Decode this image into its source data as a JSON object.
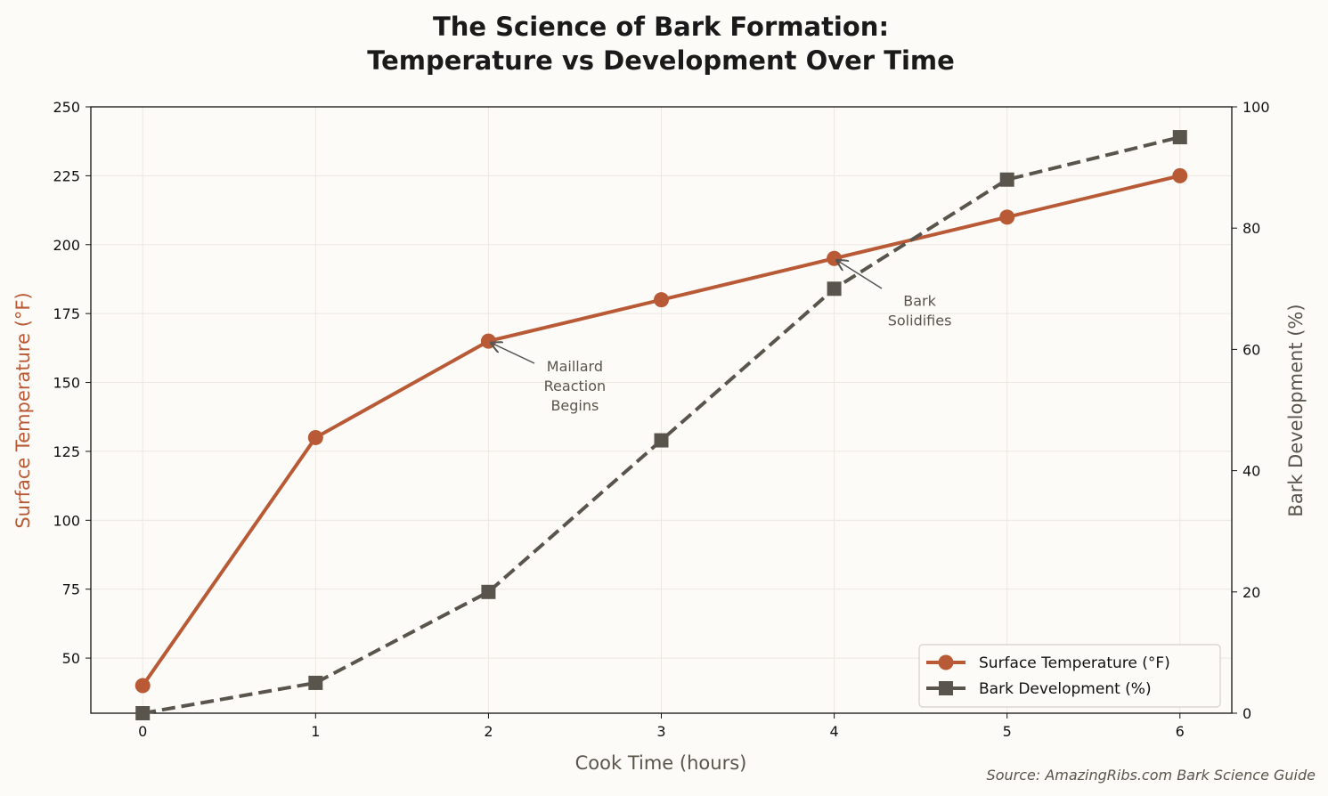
{
  "chart_data": {
    "type": "line",
    "title": "The Science of Bark Formation:\nTemperature vs Development Over Time",
    "xlabel": "Cook Time (hours)",
    "ylabel_left": "Surface Temperature (°F)",
    "ylabel_right": "Bark Development (%)",
    "x": [
      0,
      1,
      2,
      3,
      4,
      5,
      6
    ],
    "xlim": [
      -0.3,
      6.3
    ],
    "ylim_left": [
      30,
      250
    ],
    "ylim_right": [
      0,
      100
    ],
    "xticks": [
      0,
      1,
      2,
      3,
      4,
      5,
      6
    ],
    "yticks_left": [
      50,
      75,
      100,
      125,
      150,
      175,
      200,
      225,
      250
    ],
    "yticks_right": [
      0,
      20,
      40,
      60,
      80,
      100
    ],
    "grid": true,
    "legend_position": "lower-right",
    "series": [
      {
        "name": "Surface Temperature (°F)",
        "axis": "left",
        "values": [
          40,
          130,
          165,
          180,
          195,
          210,
          225
        ],
        "color": "#b85a36",
        "marker": "circle",
        "linestyle": "solid"
      },
      {
        "name": "Bark Development (%)",
        "axis": "right",
        "values": [
          0,
          5,
          20,
          45,
          70,
          88,
          95
        ],
        "color": "#5a554c",
        "marker": "square",
        "linestyle": "dashed"
      }
    ],
    "annotations": [
      {
        "text": "Maillard\nReaction\nBegins",
        "x": 2,
        "y": 165,
        "axis": "left"
      },
      {
        "text": "Bark\nSolidifies",
        "x": 4,
        "y": 195,
        "axis": "left"
      }
    ],
    "source": "Source: AmazingRibs.com Bark Science Guide"
  }
}
